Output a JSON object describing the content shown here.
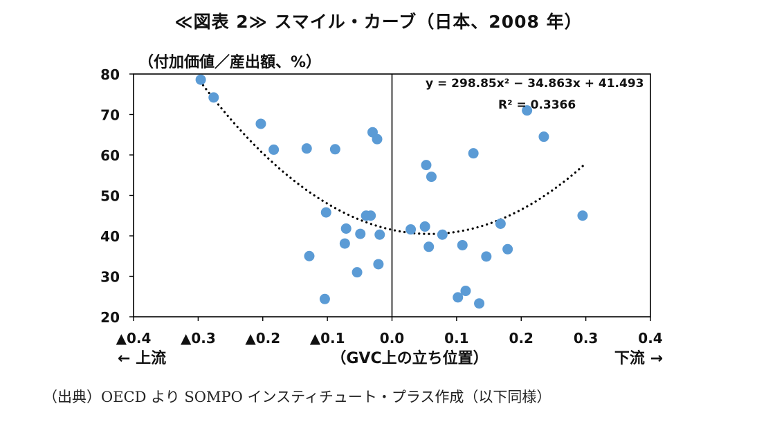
{
  "title": "≪図表 2≫ スマイル・カーブ（日本、2008 年）",
  "source_note": "（出典）OECD より SOMPO インスティチュート・プラス作成（以下同様）",
  "chart_data": {
    "type": "scatter",
    "ylabel": "（付加価値／産出額、%）",
    "xlabel": "（GVC上の立ち位置）",
    "x_left_label": "← 上流",
    "x_right_label": "下流 →",
    "xlim": [
      -0.4,
      0.4
    ],
    "ylim": [
      20,
      80
    ],
    "x_ticks": [
      -0.4,
      -0.3,
      -0.2,
      -0.1,
      0.0,
      0.1,
      0.2,
      0.3,
      0.4
    ],
    "x_tick_labels": [
      "▲0.4",
      "▲0.3",
      "▲0.2",
      "▲0.1",
      "0.0",
      "0.1",
      "0.2",
      "0.3",
      "0.4"
    ],
    "y_ticks": [
      20,
      30,
      40,
      50,
      60,
      70,
      80
    ],
    "y_tick_labels": [
      "20",
      "30",
      "40",
      "50",
      "60",
      "70",
      "80"
    ],
    "grid": false,
    "point_color": "#5b9bd5",
    "trendline": {
      "type": "polynomial",
      "coefficients": [
        298.85,
        -34.863,
        41.493
      ],
      "x_range": [
        -0.297,
        0.297
      ],
      "equation": "y = 298.85x² − 34.863x + 41.493",
      "r_squared": "R² = 0.3366",
      "style": "dotted",
      "color": "#000000"
    },
    "points": [
      {
        "x": -0.296,
        "y": 78.6
      },
      {
        "x": -0.276,
        "y": 74.2
      },
      {
        "x": -0.203,
        "y": 67.7
      },
      {
        "x": -0.183,
        "y": 61.3
      },
      {
        "x": -0.132,
        "y": 61.6
      },
      {
        "x": -0.088,
        "y": 61.4
      },
      {
        "x": -0.03,
        "y": 65.6
      },
      {
        "x": -0.023,
        "y": 63.9
      },
      {
        "x": -0.102,
        "y": 45.8
      },
      {
        "x": -0.04,
        "y": 45.0
      },
      {
        "x": -0.033,
        "y": 45.0
      },
      {
        "x": -0.071,
        "y": 41.8
      },
      {
        "x": -0.049,
        "y": 40.5
      },
      {
        "x": -0.019,
        "y": 40.3
      },
      {
        "x": -0.073,
        "y": 38.1
      },
      {
        "x": -0.128,
        "y": 35.0
      },
      {
        "x": -0.021,
        "y": 33.0
      },
      {
        "x": -0.054,
        "y": 31.0
      },
      {
        "x": -0.104,
        "y": 24.4
      },
      {
        "x": 0.053,
        "y": 57.5
      },
      {
        "x": 0.061,
        "y": 54.6
      },
      {
        "x": 0.126,
        "y": 60.4
      },
      {
        "x": 0.209,
        "y": 71.0
      },
      {
        "x": 0.235,
        "y": 64.5
      },
      {
        "x": 0.029,
        "y": 41.6
      },
      {
        "x": 0.051,
        "y": 42.3
      },
      {
        "x": 0.078,
        "y": 40.3
      },
      {
        "x": 0.057,
        "y": 37.3
      },
      {
        "x": 0.109,
        "y": 37.7
      },
      {
        "x": 0.168,
        "y": 43.0
      },
      {
        "x": 0.179,
        "y": 36.7
      },
      {
        "x": 0.146,
        "y": 34.9
      },
      {
        "x": 0.295,
        "y": 45.0
      },
      {
        "x": 0.102,
        "y": 24.8
      },
      {
        "x": 0.114,
        "y": 26.4
      },
      {
        "x": 0.135,
        "y": 23.3
      }
    ]
  }
}
